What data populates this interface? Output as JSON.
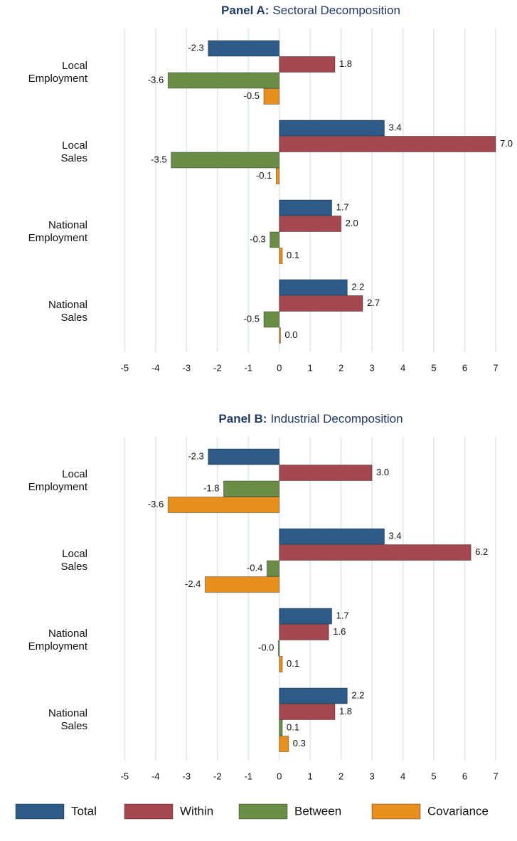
{
  "chart_data": [
    {
      "type": "bar",
      "orientation": "horizontal",
      "panel": "Panel A:",
      "title": "Sectoral Decomposition",
      "categories": [
        "Local Employment",
        "Local Sales",
        "National Employment",
        "National Sales"
      ],
      "series": [
        {
          "name": "Total",
          "color": "#2f5b88",
          "values": [
            -2.3,
            3.4,
            1.7,
            2.2
          ],
          "value_labels": [
            "-2.3",
            "3.4",
            "1.7",
            "2.2"
          ]
        },
        {
          "name": "Within",
          "color": "#a4474f",
          "values": [
            1.8,
            7.0,
            2.0,
            2.7
          ],
          "value_labels": [
            "1.8",
            "7.0",
            "2.0",
            "2.7"
          ]
        },
        {
          "name": "Between",
          "color": "#6b8e47",
          "values": [
            -3.6,
            -3.5,
            -0.3,
            -0.5
          ],
          "value_labels": [
            "-3.6",
            "-3.5",
            "-0.3",
            "-0.5"
          ]
        },
        {
          "name": "Covariance",
          "color": "#e8901e",
          "values": [
            -0.5,
            -0.1,
            0.1,
            0.04
          ],
          "value_labels": [
            "-0.5",
            "-0.1",
            "0.1",
            "0.0"
          ]
        }
      ],
      "xlim": [
        -5.4,
        7.3
      ],
      "xticks": [
        -5,
        -4,
        -3,
        -2,
        -1,
        0,
        1,
        2,
        3,
        4,
        5,
        6,
        7
      ],
      "grid": true,
      "legend": "bottom"
    },
    {
      "type": "bar",
      "orientation": "horizontal",
      "panel": "Panel B:",
      "title": "Industrial Decomposition",
      "categories": [
        "Local Employment",
        "Local Sales",
        "National Employment",
        "National Sales"
      ],
      "series": [
        {
          "color": "#2f5b88",
          "values": [
            -2.3,
            3.4,
            1.7,
            2.2
          ],
          "value_labels": [
            "-2.3",
            "3.4",
            "1.7",
            "2.2"
          ]
        },
        {
          "color": "#a4474f",
          "values": [
            3.0,
            6.2,
            1.6,
            1.8
          ],
          "value_labels": [
            "3.0",
            "6.2",
            "1.6",
            "1.8"
          ]
        },
        {
          "color": "#6b8e47",
          "values": [
            -1.8,
            -0.4,
            -0.03,
            0.1
          ],
          "value_labels": [
            "-1.8",
            "-0.4",
            "-0.0",
            "0.1"
          ]
        },
        {
          "color": "#e8901e",
          "values": [
            -3.6,
            -2.4,
            0.1,
            0.3
          ],
          "value_labels": [
            "-3.6",
            "-2.4",
            "0.1",
            "0.3"
          ]
        }
      ],
      "xlim": [
        -5.4,
        7.3
      ],
      "xticks": [
        -5,
        -4,
        -3,
        -2,
        -1,
        0,
        1,
        2,
        3,
        4,
        5,
        6,
        7
      ],
      "grid": true
    }
  ]
}
